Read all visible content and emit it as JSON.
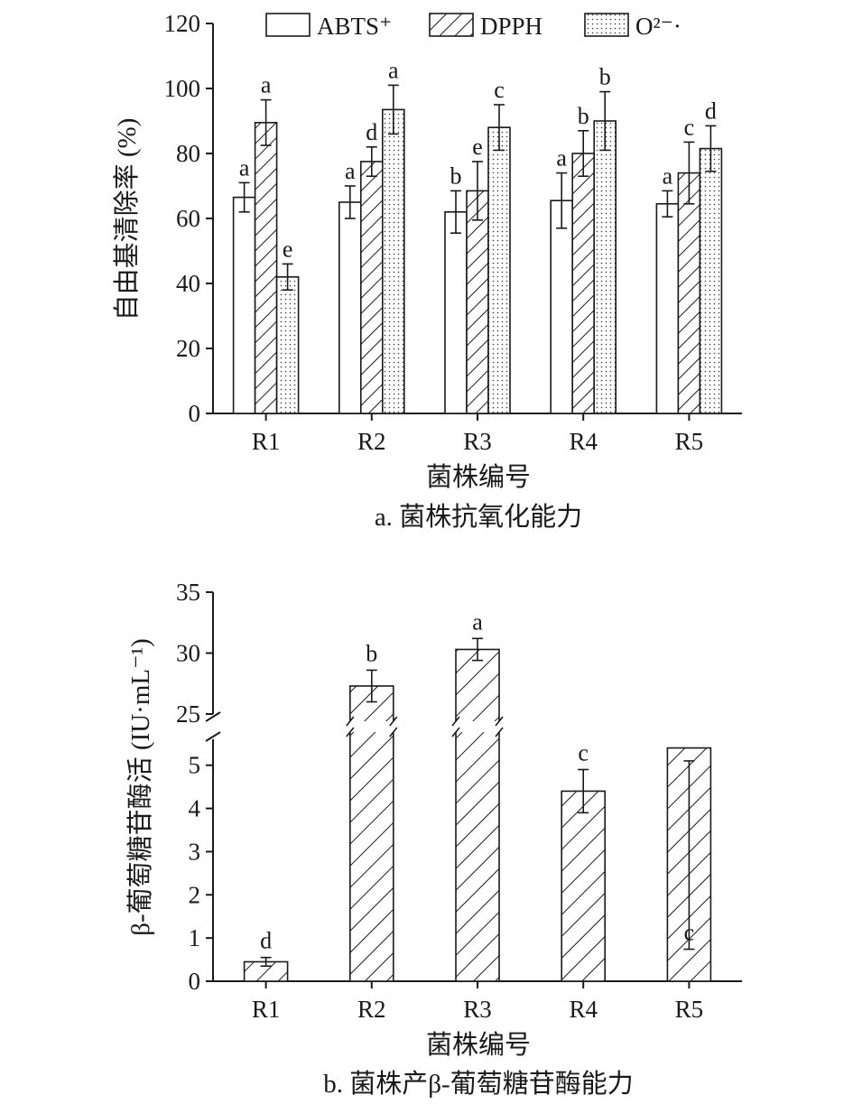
{
  "chart_data": [
    {
      "type": "bar",
      "caption": "a. 菌株抗氧化能力",
      "xlabel": "菌株编号",
      "ylabel": "自由基清除率 (%)",
      "ylim": [
        0,
        120
      ],
      "yticks": [
        "0",
        "20",
        "40",
        "60",
        "80",
        "100",
        "120"
      ],
      "categories": [
        "R1",
        "R2",
        "R3",
        "R4",
        "R5"
      ],
      "legend_position": "top",
      "series": [
        {
          "name": "ABTS⁺",
          "pattern": "blank",
          "values": [
            66.5,
            65,
            62,
            65.5,
            64.5
          ],
          "errors": [
            4.5,
            5,
            6.5,
            8.5,
            4
          ],
          "labels": [
            "a",
            "a",
            "b",
            "a",
            "a"
          ]
        },
        {
          "name": "DPPH",
          "pattern": "hatch",
          "values": [
            89.5,
            77.5,
            68.5,
            80,
            74
          ],
          "errors": [
            7,
            4.5,
            9,
            7,
            9.5
          ],
          "labels": [
            "a",
            "d",
            "e",
            "b",
            "c"
          ]
        },
        {
          "name": "O²⁻·",
          "pattern": "dots",
          "values": [
            42,
            93.5,
            88,
            90,
            81.5
          ],
          "errors": [
            4,
            7.5,
            7,
            9,
            7
          ],
          "labels": [
            "e",
            "a",
            "c",
            "b",
            "d"
          ]
        }
      ]
    },
    {
      "type": "bar",
      "caption": "b. 菌株产β-葡萄糖苷酶能力",
      "xlabel": "菌株编号",
      "ylabel": "β-葡萄糖苷酶活 (IU·mL⁻¹)",
      "axis_break": [
        5.6,
        25
      ],
      "yticks_lower": [
        "0",
        "1",
        "2",
        "3",
        "4",
        "5"
      ],
      "yticks_upper": [
        "25",
        "30",
        "35"
      ],
      "categories": [
        "R1",
        "R2",
        "R3",
        "R4",
        "R5"
      ],
      "series": [
        {
          "name": "",
          "pattern": "hatch",
          "values": [
            0.45,
            27.3,
            30.3,
            4.4,
            5.4
          ],
          "errors": [
            0.1,
            1.3,
            0.9,
            0.5,
            0.3
          ],
          "labels": [
            "d",
            "b",
            "a",
            "c",
            "c"
          ]
        }
      ]
    }
  ]
}
